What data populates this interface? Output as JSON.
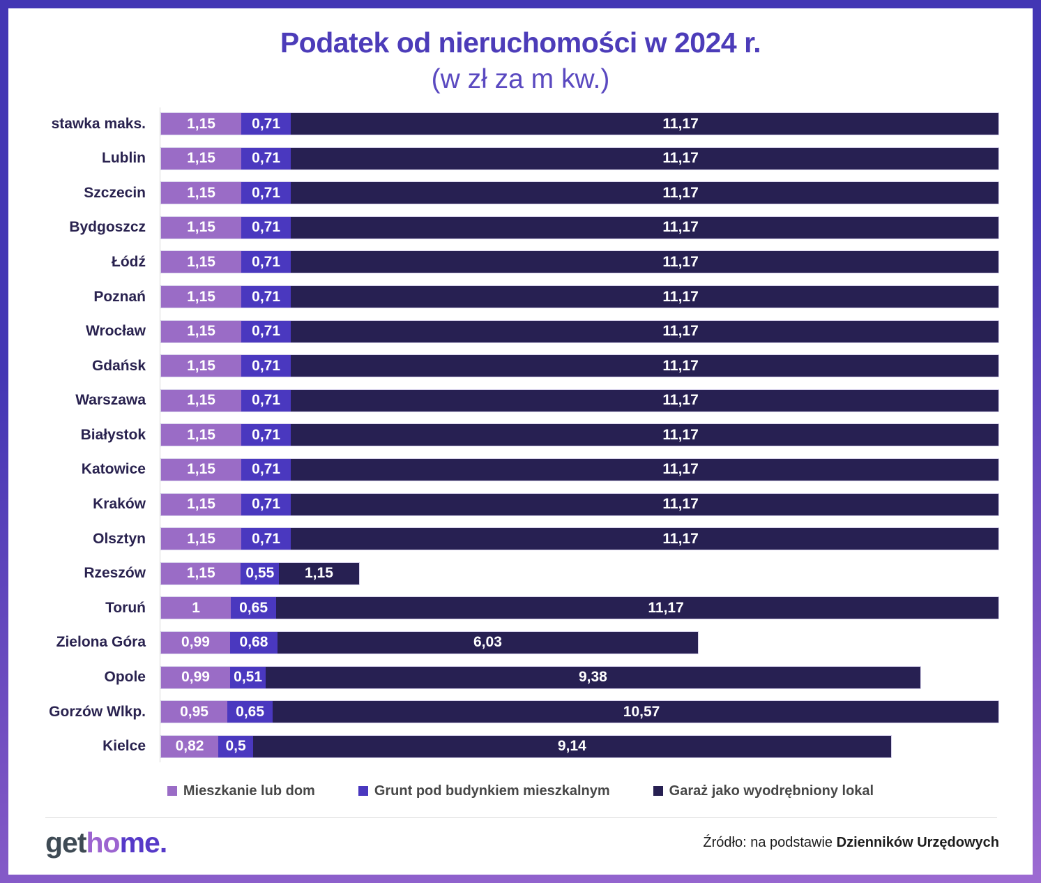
{
  "title": "Podatek od nieruchomości w 2024 r.",
  "subtitle": "(w zł za m kw.)",
  "colors": {
    "frame_gradient_top": "#4336b4",
    "frame_gradient_bottom": "#9d6bd2",
    "title_text": "#4c3cb9",
    "row_label_text": "#29224f",
    "bar_value_text": "#ffffff",
    "legend_text": "#474747",
    "axis_line": "#d9d9d9"
  },
  "chart_data": {
    "type": "bar",
    "orientation": "horizontal",
    "stacked": true,
    "grid": false,
    "legend_position": "bottom",
    "axis_max": 12,
    "unit": "zł za m kw.",
    "categories": [
      "stawka maks.",
      "Lublin",
      "Szczecin",
      "Bydgoszcz",
      "Łódź",
      "Poznań",
      "Wrocław",
      "Gdańsk",
      "Warszawa",
      "Białystok",
      "Katowice",
      "Kraków",
      "Olsztyn",
      "Rzeszów",
      "Toruń",
      "Zielona Góra",
      "Opole",
      "Gorzów Wlkp.",
      "Kielce"
    ],
    "series_names": [
      "Mieszkanie lub dom",
      "Grunt pod budynkiem mieszkalnym",
      "Garaż jako wyodrębniony lokal"
    ],
    "series": [
      {
        "name": "Mieszkanie lub dom",
        "color": "#9a6cc6",
        "values": [
          1.15,
          1.15,
          1.15,
          1.15,
          1.15,
          1.15,
          1.15,
          1.15,
          1.15,
          1.15,
          1.15,
          1.15,
          1.15,
          1.15,
          1,
          0.99,
          0.99,
          0.95,
          0.82
        ],
        "labels": [
          "1,15",
          "1,15",
          "1,15",
          "1,15",
          "1,15",
          "1,15",
          "1,15",
          "1,15",
          "1,15",
          "1,15",
          "1,15",
          "1,15",
          "1,15",
          "1,15",
          "1",
          "0,99",
          "0,99",
          "0,95",
          "0,82"
        ]
      },
      {
        "name": "Grunt pod budynkiem mieszkalnym",
        "color": "#4a38bf",
        "values": [
          0.71,
          0.71,
          0.71,
          0.71,
          0.71,
          0.71,
          0.71,
          0.71,
          0.71,
          0.71,
          0.71,
          0.71,
          0.71,
          0.55,
          0.65,
          0.68,
          0.51,
          0.65,
          0.5
        ],
        "labels": [
          "0,71",
          "0,71",
          "0,71",
          "0,71",
          "0,71",
          "0,71",
          "0,71",
          "0,71",
          "0,71",
          "0,71",
          "0,71",
          "0,71",
          "0,71",
          "0,55",
          "0,65",
          "0,68",
          "0,51",
          "0,65",
          "0,5"
        ]
      },
      {
        "name": "Garaż jako wyodrębniony lokal",
        "color": "#272052",
        "values": [
          11.17,
          11.17,
          11.17,
          11.17,
          11.17,
          11.17,
          11.17,
          11.17,
          11.17,
          11.17,
          11.17,
          11.17,
          11.17,
          1.15,
          11.17,
          6.03,
          9.38,
          10.57,
          9.14
        ],
        "labels": [
          "11,17",
          "11,17",
          "11,17",
          "11,17",
          "11,17",
          "11,17",
          "11,17",
          "11,17",
          "11,17",
          "11,17",
          "11,17",
          "11,17",
          "11,17",
          "1,15",
          "11,17",
          "6,03",
          "9,38",
          "10,57",
          "9,14"
        ]
      }
    ]
  },
  "footer": {
    "logo_part1": "get",
    "logo_part2": "ho",
    "logo_part3": "me.",
    "source_prefix": "Źródło: na podstawie ",
    "source_bold": "Dzienników Urzędowych"
  }
}
